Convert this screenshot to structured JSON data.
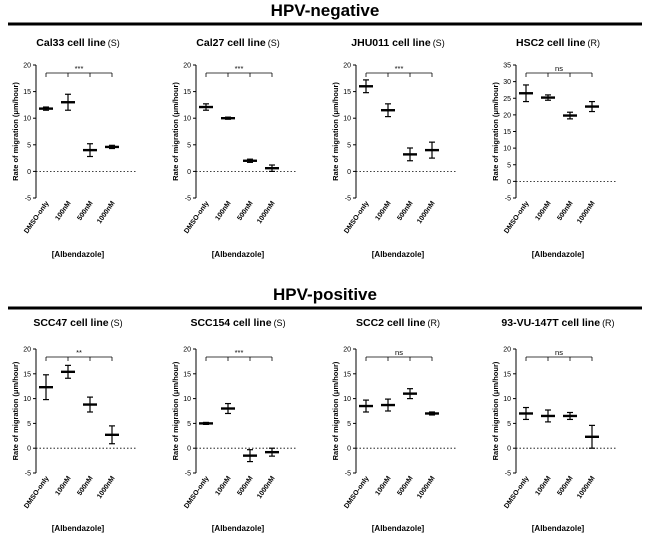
{
  "sections": [
    {
      "title": "HPV-negative"
    },
    {
      "title": "HPV-positive"
    }
  ],
  "chart_data": [
    {
      "type": "scatter",
      "section": "HPV-negative",
      "title": "Cal33 cell line",
      "tag": "(S)",
      "categories": [
        "DMSO-only",
        "100nM",
        "500nM",
        "1000nM"
      ],
      "means": [
        11.8,
        13.0,
        4.0,
        4.6
      ],
      "errors": [
        0.3,
        1.5,
        1.2,
        0.3
      ],
      "ylim": [
        -5,
        20
      ],
      "yticks": [
        -5,
        0,
        5,
        10,
        15,
        20
      ],
      "ylabel": "Rate of migration (μm/hour)",
      "xlabel": "[Albendazole]",
      "significance": "***"
    },
    {
      "type": "scatter",
      "section": "HPV-negative",
      "title": "Cal27 cell line",
      "tag": "(S)",
      "categories": [
        "DMSO-only",
        "100nM",
        "500nM",
        "1000nM"
      ],
      "means": [
        12.1,
        10.0,
        2.0,
        0.6
      ],
      "errors": [
        0.6,
        0.2,
        0.3,
        0.6
      ],
      "ylim": [
        -5,
        20
      ],
      "yticks": [
        -5,
        0,
        5,
        10,
        15,
        20
      ],
      "ylabel": "Rate of migration (μm/hour)",
      "xlabel": "[Albendazole]",
      "significance": "***"
    },
    {
      "type": "scatter",
      "section": "HPV-negative",
      "title": "JHU011 cell line",
      "tag": "(S)",
      "categories": [
        "DMSO-only",
        "100nM",
        "500nM",
        "1000nM"
      ],
      "means": [
        16.0,
        11.5,
        3.2,
        4.0
      ],
      "errors": [
        1.2,
        1.2,
        1.2,
        1.5
      ],
      "ylim": [
        -5,
        20
      ],
      "yticks": [
        -5,
        0,
        5,
        10,
        15,
        20
      ],
      "ylabel": "Rate of migration (μm/hour)",
      "xlabel": "[Albendazole]",
      "significance": "***"
    },
    {
      "type": "scatter",
      "section": "HPV-negative",
      "title": "HSC2 cell line",
      "tag": "(R)",
      "categories": [
        "DMSO-only",
        "100nM",
        "500nM",
        "1000nM"
      ],
      "means": [
        26.5,
        25.2,
        19.8,
        22.5
      ],
      "errors": [
        2.5,
        0.8,
        1.0,
        1.5
      ],
      "ylim": [
        -5,
        35
      ],
      "yticks": [
        -5,
        0,
        5,
        10,
        15,
        20,
        25,
        30,
        35
      ],
      "ylabel": "Rate of migration (μm/hour)",
      "xlabel": "[Albendazole]",
      "significance": "ns"
    },
    {
      "type": "scatter",
      "section": "HPV-positive",
      "title": "SCC47 cell line",
      "tag": "(S)",
      "categories": [
        "DMSO-only",
        "100nM",
        "500nM",
        "1000nM"
      ],
      "means": [
        12.3,
        15.4,
        8.8,
        2.7
      ],
      "errors": [
        2.5,
        1.3,
        1.5,
        1.8
      ],
      "ylim": [
        -5,
        20
      ],
      "yticks": [
        -5,
        0,
        5,
        10,
        15,
        20
      ],
      "ylabel": "Rate of migration (μm/hour)",
      "xlabel": "[Albendazole]",
      "significance": "**"
    },
    {
      "type": "scatter",
      "section": "HPV-positive",
      "title": "SCC154 cell line",
      "tag": "(S)",
      "categories": [
        "DMSO-only",
        "100nM",
        "500nM",
        "1000nM"
      ],
      "means": [
        5.0,
        8.0,
        -1.5,
        -0.8
      ],
      "errors": [
        0.2,
        1.0,
        1.2,
        0.8
      ],
      "ylim": [
        -5,
        20
      ],
      "yticks": [
        -5,
        0,
        5,
        10,
        15,
        20
      ],
      "ylabel": "Rate of migration (μm/hour)",
      "xlabel": "[Albendazole]",
      "significance": "***"
    },
    {
      "type": "scatter",
      "section": "HPV-positive",
      "title": "SCC2 cell line",
      "tag": "(R)",
      "categories": [
        "DMSO-only",
        "100nM",
        "500nM",
        "1000nM"
      ],
      "means": [
        8.5,
        8.7,
        11.0,
        7.0
      ],
      "errors": [
        1.2,
        1.2,
        1.0,
        0.3
      ],
      "ylim": [
        -5,
        20
      ],
      "yticks": [
        -5,
        0,
        5,
        10,
        15,
        20
      ],
      "ylabel": "Rate of migration (μm/hour)",
      "xlabel": "[Albendazole]",
      "significance": "ns"
    },
    {
      "type": "scatter",
      "section": "HPV-positive",
      "title": "93-VU-147T cell line",
      "tag": "(R)",
      "categories": [
        "DMSO-only",
        "100nM",
        "500nM",
        "1000nM"
      ],
      "means": [
        7.0,
        6.5,
        6.5,
        2.3
      ],
      "errors": [
        1.2,
        1.2,
        0.7,
        2.3
      ],
      "ylim": [
        -5,
        20
      ],
      "yticks": [
        -5,
        0,
        5,
        10,
        15,
        20
      ],
      "ylabel": "Rate of migration (μm/hour)",
      "xlabel": "[Albendazole]",
      "significance": "ns"
    }
  ]
}
